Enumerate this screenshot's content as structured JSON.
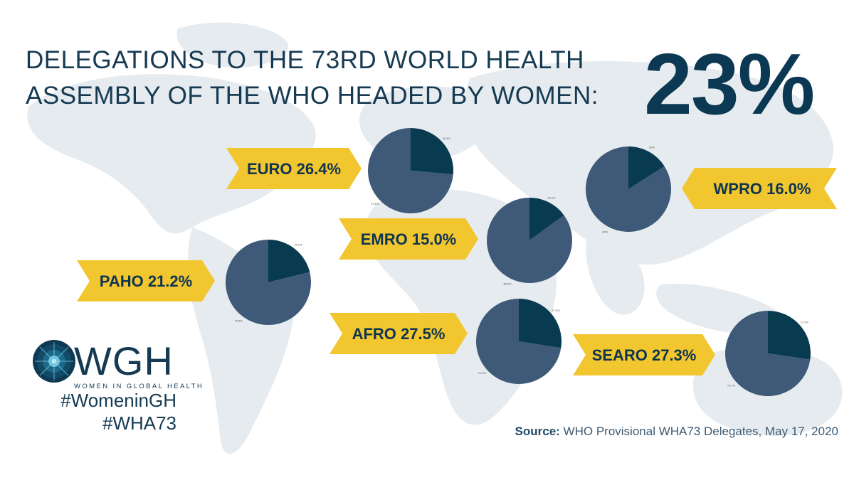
{
  "header": {
    "title_line1": "DELEGATIONS TO THE 73RD WORLD HEALTH",
    "title_line2": "ASSEMBLY OF THE WHO HEADED BY WOMEN:",
    "overall_percent": "23%"
  },
  "logo": {
    "text": "WGH",
    "subtitle": "WOMEN IN GLOBAL HEALTH"
  },
  "hashtags": [
    "#WomeninGH",
    "#WHA73"
  ],
  "source": {
    "label": "Source:",
    "text": "WHO Provisional WHA73 Delegates, May 17, 2020"
  },
  "colors": {
    "banner": "#f2c62f",
    "banner_text": "#0e3550",
    "pie_women": "#083a50",
    "pie_men": "#3e5a78",
    "title": "#153a52",
    "map": "#e6ebef"
  },
  "chart_data": {
    "type": "pie",
    "charts": [
      {
        "region": "EURO",
        "banner_text": "EURO 26.4%",
        "values": [
          26.4,
          73.6
        ],
        "labels": [
          "26.4%",
          "73.6%"
        ]
      },
      {
        "region": "WPRO",
        "banner_text": "WPRO 16.0%",
        "values": [
          16.0,
          84.0
        ],
        "labels": [
          "16%",
          "84%"
        ]
      },
      {
        "region": "EMRO",
        "banner_text": "EMRO 15.0%",
        "values": [
          15.0,
          85.0
        ],
        "labels": [
          "15.0%",
          "85.0%"
        ]
      },
      {
        "region": "PAHO",
        "banner_text": "PAHO 21.2%",
        "values": [
          21.2,
          78.8
        ],
        "labels": [
          "21.2%",
          "78.8%"
        ]
      },
      {
        "region": "AFRO",
        "banner_text": "AFRO 27.5%",
        "values": [
          27.5,
          72.5
        ],
        "labels": [
          "27.5%",
          "72.5%"
        ]
      },
      {
        "region": "SEARO",
        "banner_text": "SEARO 27.3%",
        "values": [
          27.3,
          72.7
        ],
        "labels": [
          "27.3%",
          "72.7%"
        ]
      }
    ]
  }
}
